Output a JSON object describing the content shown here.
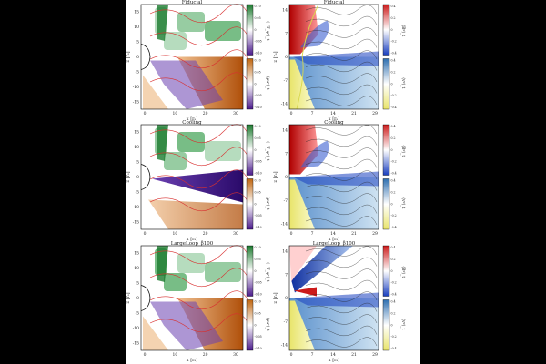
{
  "page": {
    "background": "#000000",
    "figure_background": "#ffffff"
  },
  "rows": [
    {
      "title": "Fiducial"
    },
    {
      "title": "Cooling"
    },
    {
      "title": "LargeLoop_β100"
    }
  ],
  "left_panels": {
    "xlabel": "x [rₛ]",
    "ylabel": "z [rₛ]",
    "xticks": [
      "0",
      "10",
      "20",
      "30"
    ],
    "yticks": [
      "15",
      "10",
      "5",
      "0",
      "-5",
      "-10",
      "-15"
    ],
    "colorbar_top": {
      "label": "⟨−T_φʳ⟩_t",
      "ticks": [
        "0.10",
        "0.05",
        "0",
        "-0.05",
        "-0.10"
      ]
    },
    "colorbar_bottom": {
      "label": "⟨ρuʳ⟩_t",
      "ticks": [
        "0.10",
        "0.05",
        "0",
        "-0.05",
        "-0.10"
      ]
    }
  },
  "right_panels": {
    "xlabel": "x [rₛ]",
    "ylabel": "z [rₛ]",
    "xticks": [
      "0",
      "7",
      "14",
      "21",
      "29"
    ],
    "yticks": [
      "14",
      "7",
      "0",
      "-7",
      "-14"
    ],
    "colorbar_top": {
      "label": "⟨Bᵠ⟩_t",
      "ticks": [
        "0.4",
        "0.2",
        "0",
        "-0.2",
        "-0.4"
      ]
    },
    "colorbar_bottom": {
      "label": "⟨vᵠ⟩_t",
      "ticks": [
        "0.4",
        "0.2",
        "0",
        "-0.2",
        "-0.4"
      ]
    }
  },
  "colors": {
    "green": "#1b7a2e",
    "purple": "#4a1a8c",
    "orange": "#c0650e",
    "red": "#cc1a1a",
    "blue": "#1a3fbf",
    "lightblue": "#9cc7e4",
    "yellow": "#e8e46a"
  }
}
